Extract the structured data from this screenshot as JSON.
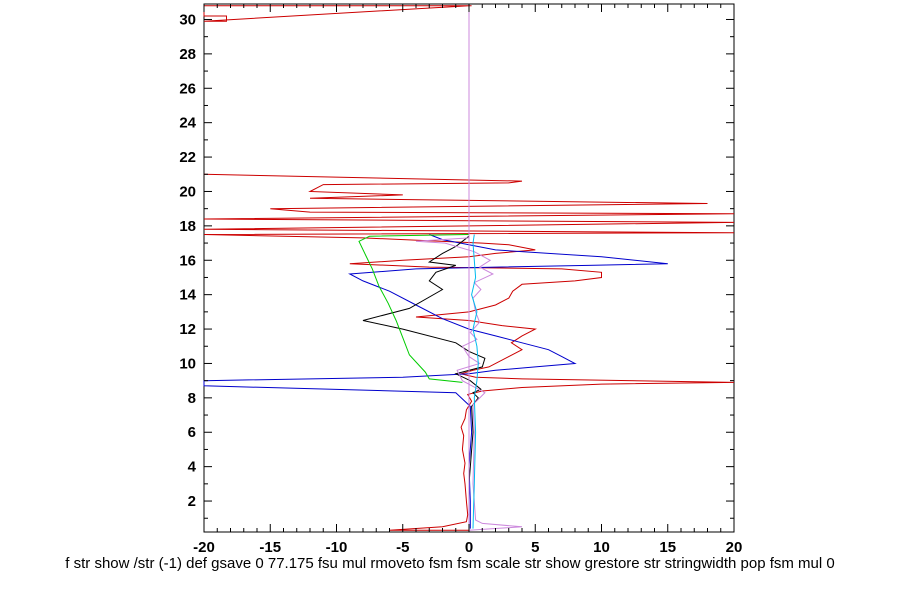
{
  "chart_data": {
    "type": "line",
    "xlim": [
      -20,
      20
    ],
    "ylim": [
      0.2,
      30.9
    ],
    "x_ticks": [
      -20,
      -15,
      -10,
      -5,
      0,
      5,
      10,
      15,
      20
    ],
    "y_ticks": [
      2,
      4,
      6,
      8,
      10,
      12,
      14,
      16,
      18,
      20,
      22,
      24,
      26,
      28,
      30
    ],
    "xlabel": "f str show /str (-1) def gsave 0 77.175 fsu mul rmoveto fsm fsm scale str show grestore str stringwidth pop fsm mul 0",
    "ylabel": "",
    "grid": false,
    "series": [
      {
        "color": "#cc0000",
        "points": [
          [
            0.2,
            30.8
          ],
          [
            -20,
            30.8
          ],
          [
            -20,
            30.2
          ],
          [
            -18.3,
            30.2
          ],
          [
            -18.3,
            29.9
          ],
          [
            -20,
            29.9
          ],
          [
            0,
            30.8
          ],
          [
            -20,
            30.8
          ]
        ]
      },
      {
        "color": "#cc0000",
        "points": [
          [
            0,
            0.3
          ],
          [
            -6,
            0.3
          ],
          [
            -2,
            0.5
          ],
          [
            -0.2,
            0.8
          ],
          [
            -0.1,
            1.2
          ],
          [
            -0.2,
            2
          ],
          [
            -0.3,
            3
          ],
          [
            -0.4,
            3.6
          ],
          [
            -0.3,
            4.2
          ],
          [
            -0.5,
            5
          ],
          [
            -0.4,
            5.8
          ],
          [
            -0.6,
            6.3
          ],
          [
            -0.3,
            6.8
          ],
          [
            -0.2,
            7.3
          ],
          [
            0.2,
            7.8
          ],
          [
            -0.1,
            8.2
          ],
          [
            1,
            8.4
          ],
          [
            4,
            8.6
          ],
          [
            10,
            8.8
          ],
          [
            20,
            8.9
          ],
          [
            4,
            9.1
          ],
          [
            0.5,
            9.2
          ],
          [
            -0.6,
            9.4
          ],
          [
            0.3,
            9.6
          ],
          [
            1.5,
            9.8
          ],
          [
            3,
            10.4
          ],
          [
            4,
            10.8
          ],
          [
            3.2,
            11.2
          ],
          [
            4,
            11.6
          ],
          [
            5,
            12
          ],
          [
            2.5,
            12.2
          ],
          [
            0,
            12.5
          ],
          [
            -4,
            12.7
          ],
          [
            0,
            13
          ],
          [
            2,
            13.4
          ],
          [
            3,
            13.8
          ],
          [
            3.3,
            14.2
          ],
          [
            4,
            14.6
          ],
          [
            8,
            14.8
          ],
          [
            10,
            15
          ],
          [
            10,
            15.3
          ],
          [
            7,
            15.5
          ],
          [
            -3,
            15.6
          ],
          [
            -9,
            15.8
          ],
          [
            -5,
            16
          ],
          [
            0,
            16.2
          ],
          [
            2,
            16.4
          ],
          [
            5,
            16.6
          ],
          [
            3,
            16.9
          ],
          [
            1,
            17
          ],
          [
            -8,
            17.3
          ],
          [
            -20,
            17.5
          ],
          [
            20,
            17.6
          ],
          [
            -20,
            17.8
          ],
          [
            20,
            18.2
          ],
          [
            -20,
            18.4
          ],
          [
            20,
            18.7
          ],
          [
            -12,
            18.8
          ],
          [
            -15,
            19
          ],
          [
            18,
            19.3
          ],
          [
            -12,
            19.6
          ],
          [
            -5,
            19.8
          ],
          [
            -12,
            20
          ],
          [
            -11,
            20.4
          ],
          [
            3,
            20.5
          ],
          [
            4,
            20.6
          ],
          [
            -20,
            21
          ]
        ]
      },
      {
        "color": "#0000cc",
        "points": [
          [
            0.1,
            0.4
          ],
          [
            0.1,
            2
          ],
          [
            0,
            4
          ],
          [
            0.2,
            6
          ],
          [
            0.1,
            7.5
          ],
          [
            -1,
            8.3
          ],
          [
            -20,
            8.7
          ],
          [
            -20,
            9
          ],
          [
            -5,
            9.2
          ],
          [
            0,
            9.4
          ],
          [
            2,
            9.6
          ],
          [
            5,
            9.8
          ],
          [
            8,
            10
          ],
          [
            7,
            10.4
          ],
          [
            6,
            10.8
          ],
          [
            4,
            11.2
          ],
          [
            2,
            11.6
          ],
          [
            0,
            12
          ],
          [
            -2,
            12.6
          ],
          [
            -4,
            13.4
          ],
          [
            -6,
            14.2
          ],
          [
            -8,
            14.8
          ],
          [
            -9,
            15.2
          ],
          [
            -4,
            15.5
          ],
          [
            2,
            15.6
          ],
          [
            9,
            15.7
          ],
          [
            15,
            15.8
          ],
          [
            10,
            16.2
          ],
          [
            2,
            16.6
          ],
          [
            -2,
            17.2
          ],
          [
            -3,
            17.5
          ]
        ]
      },
      {
        "color": "#000000",
        "points": [
          [
            0,
            0.4
          ],
          [
            0,
            3
          ],
          [
            0.3,
            6
          ],
          [
            0.2,
            7.5
          ],
          [
            0.7,
            8
          ],
          [
            0.3,
            8.3
          ],
          [
            0.9,
            8.5
          ],
          [
            0.1,
            9
          ],
          [
            -1,
            9.4
          ],
          [
            1,
            9.8
          ],
          [
            1.2,
            10.3
          ],
          [
            0,
            10.7
          ],
          [
            -1,
            11.2
          ],
          [
            -5,
            12
          ],
          [
            -8,
            12.5
          ],
          [
            -4.5,
            13.2
          ],
          [
            -2,
            14.3
          ],
          [
            -3,
            14.8
          ],
          [
            -2.5,
            15.3
          ],
          [
            -1,
            15.7
          ],
          [
            -3,
            15.9
          ],
          [
            -2,
            16.4
          ],
          [
            -1,
            16.8
          ],
          [
            0,
            17.4
          ]
        ]
      },
      {
        "color": "#00cc00",
        "points": [
          [
            -0.5,
            8.9
          ],
          [
            -3,
            9.1
          ],
          [
            -3.3,
            9.5
          ],
          [
            -4.5,
            10.5
          ],
          [
            -5,
            11.5
          ],
          [
            -5.5,
            12.5
          ],
          [
            -6.1,
            13.5
          ],
          [
            -6.8,
            14.5
          ],
          [
            -7.3,
            15.5
          ],
          [
            -7.8,
            16.3
          ],
          [
            -8.3,
            17.1
          ],
          [
            -7.5,
            17.4
          ],
          [
            0,
            17.5
          ]
        ]
      },
      {
        "color": "#cc88dd",
        "points": [
          [
            0,
            0.2
          ],
          [
            0,
            30.9
          ]
        ]
      },
      {
        "color": "#cc88dd",
        "points": [
          [
            0,
            0.3
          ],
          [
            4,
            0.5
          ],
          [
            1,
            0.7
          ],
          [
            0.5,
            0.9
          ],
          [
            0.3,
            3
          ],
          [
            0.4,
            6
          ],
          [
            0.3,
            7.6
          ],
          [
            1.2,
            8.3
          ],
          [
            -0.5,
            9
          ],
          [
            -0.9,
            9.6
          ],
          [
            0.8,
            10
          ],
          [
            0,
            10.4
          ],
          [
            -0.5,
            11
          ],
          [
            0.6,
            11.4
          ],
          [
            0.1,
            11.8
          ],
          [
            0.8,
            12.4
          ],
          [
            0.5,
            13
          ],
          [
            0.3,
            13.8
          ],
          [
            0.9,
            14.3
          ],
          [
            0.4,
            14.7
          ],
          [
            1.8,
            15.2
          ],
          [
            0.8,
            15.6
          ],
          [
            1.6,
            16
          ],
          [
            0.4,
            16.5
          ],
          [
            -1.8,
            17
          ],
          [
            -4,
            17.1
          ],
          [
            0,
            17.3
          ]
        ]
      },
      {
        "color": "#00bbee",
        "points": [
          [
            0.3,
            0.4
          ],
          [
            0.4,
            3
          ],
          [
            0.5,
            6
          ],
          [
            0.4,
            8
          ],
          [
            0.6,
            9
          ],
          [
            0.7,
            10
          ],
          [
            0.6,
            11
          ],
          [
            0.3,
            12
          ],
          [
            0.6,
            13
          ],
          [
            0.2,
            14
          ],
          [
            0.5,
            15
          ],
          [
            0.4,
            16
          ],
          [
            0.3,
            17
          ],
          [
            0.4,
            17.5
          ]
        ]
      }
    ]
  }
}
